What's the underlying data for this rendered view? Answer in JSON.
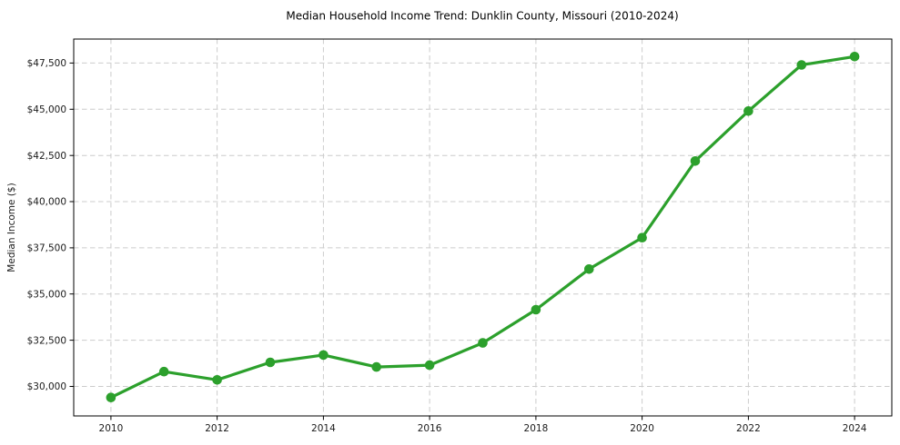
{
  "chart_data": {
    "type": "line",
    "title": "Median Household Income Trend: Dunklin County, Missouri (2010-2024)",
    "xlabel": "",
    "ylabel": "Median Income ($)",
    "series": [
      {
        "name": "Median Household Income",
        "x": [
          2010,
          2011,
          2012,
          2013,
          2014,
          2015,
          2016,
          2017,
          2018,
          2019,
          2020,
          2021,
          2022,
          2023,
          2024
        ],
        "values": [
          29400,
          30800,
          30350,
          31300,
          31700,
          31050,
          31150,
          32350,
          34150,
          36350,
          38050,
          42200,
          44900,
          47400,
          47850
        ]
      }
    ],
    "x_ticks": [
      2010,
      2012,
      2014,
      2016,
      2018,
      2020,
      2022,
      2024
    ],
    "x_tick_labels": [
      "2010",
      "2012",
      "2014",
      "2016",
      "2018",
      "2020",
      "2022",
      "2024"
    ],
    "y_ticks": [
      30000,
      32500,
      35000,
      37500,
      40000,
      42500,
      45000,
      47500
    ],
    "y_tick_labels": [
      "$30,000",
      "$32,500",
      "$35,000",
      "$37,500",
      "$40,000",
      "$42,500",
      "$45,000",
      "$47,500"
    ],
    "xlim": [
      2009.3,
      2024.7
    ],
    "ylim": [
      28400,
      48800
    ],
    "grid": true,
    "legend": "none",
    "marker": "circle",
    "colors": {
      "line": "#2ca02c",
      "marker": "#2ca02c",
      "grid": "#cccccc",
      "spine": "#000000",
      "text": "#1a1a1a",
      "background": "#ffffff"
    }
  }
}
